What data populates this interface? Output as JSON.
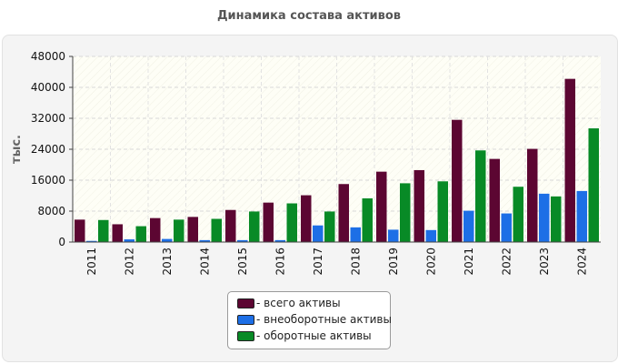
{
  "title": "Динамика состава активов",
  "chart_data": {
    "type": "bar",
    "title": "Динамика состава активов",
    "ylabel": "тыс.",
    "xlabel": "",
    "ylim": [
      0,
      48000
    ],
    "yticks": [
      0,
      8000,
      16000,
      24000,
      32000,
      40000,
      48000
    ],
    "grid": true,
    "legend_position": "bottom",
    "categories": [
      "2011",
      "2012",
      "2013",
      "2014",
      "2015",
      "2016",
      "2017",
      "2018",
      "2019",
      "2020",
      "2021",
      "2022",
      "2023",
      "2024"
    ],
    "series": [
      {
        "name": "- всего активы",
        "color": "#5c0632",
        "values": [
          5800,
          4600,
          6200,
          6500,
          8300,
          10200,
          12100,
          15000,
          18200,
          18600,
          31600,
          21500,
          24100,
          42200
        ]
      },
      {
        "name": "- внеоборотные активы",
        "color": "#1d6fe6",
        "values": [
          300,
          700,
          800,
          500,
          500,
          500,
          4300,
          3800,
          3200,
          3100,
          8100,
          7400,
          12500,
          13200
        ]
      },
      {
        "name": "- оборотные активы",
        "color": "#088a26",
        "values": [
          5700,
          4100,
          5800,
          6000,
          7900,
          10000,
          7900,
          11300,
          15200,
          15700,
          23700,
          14300,
          11800,
          29400
        ]
      }
    ]
  }
}
